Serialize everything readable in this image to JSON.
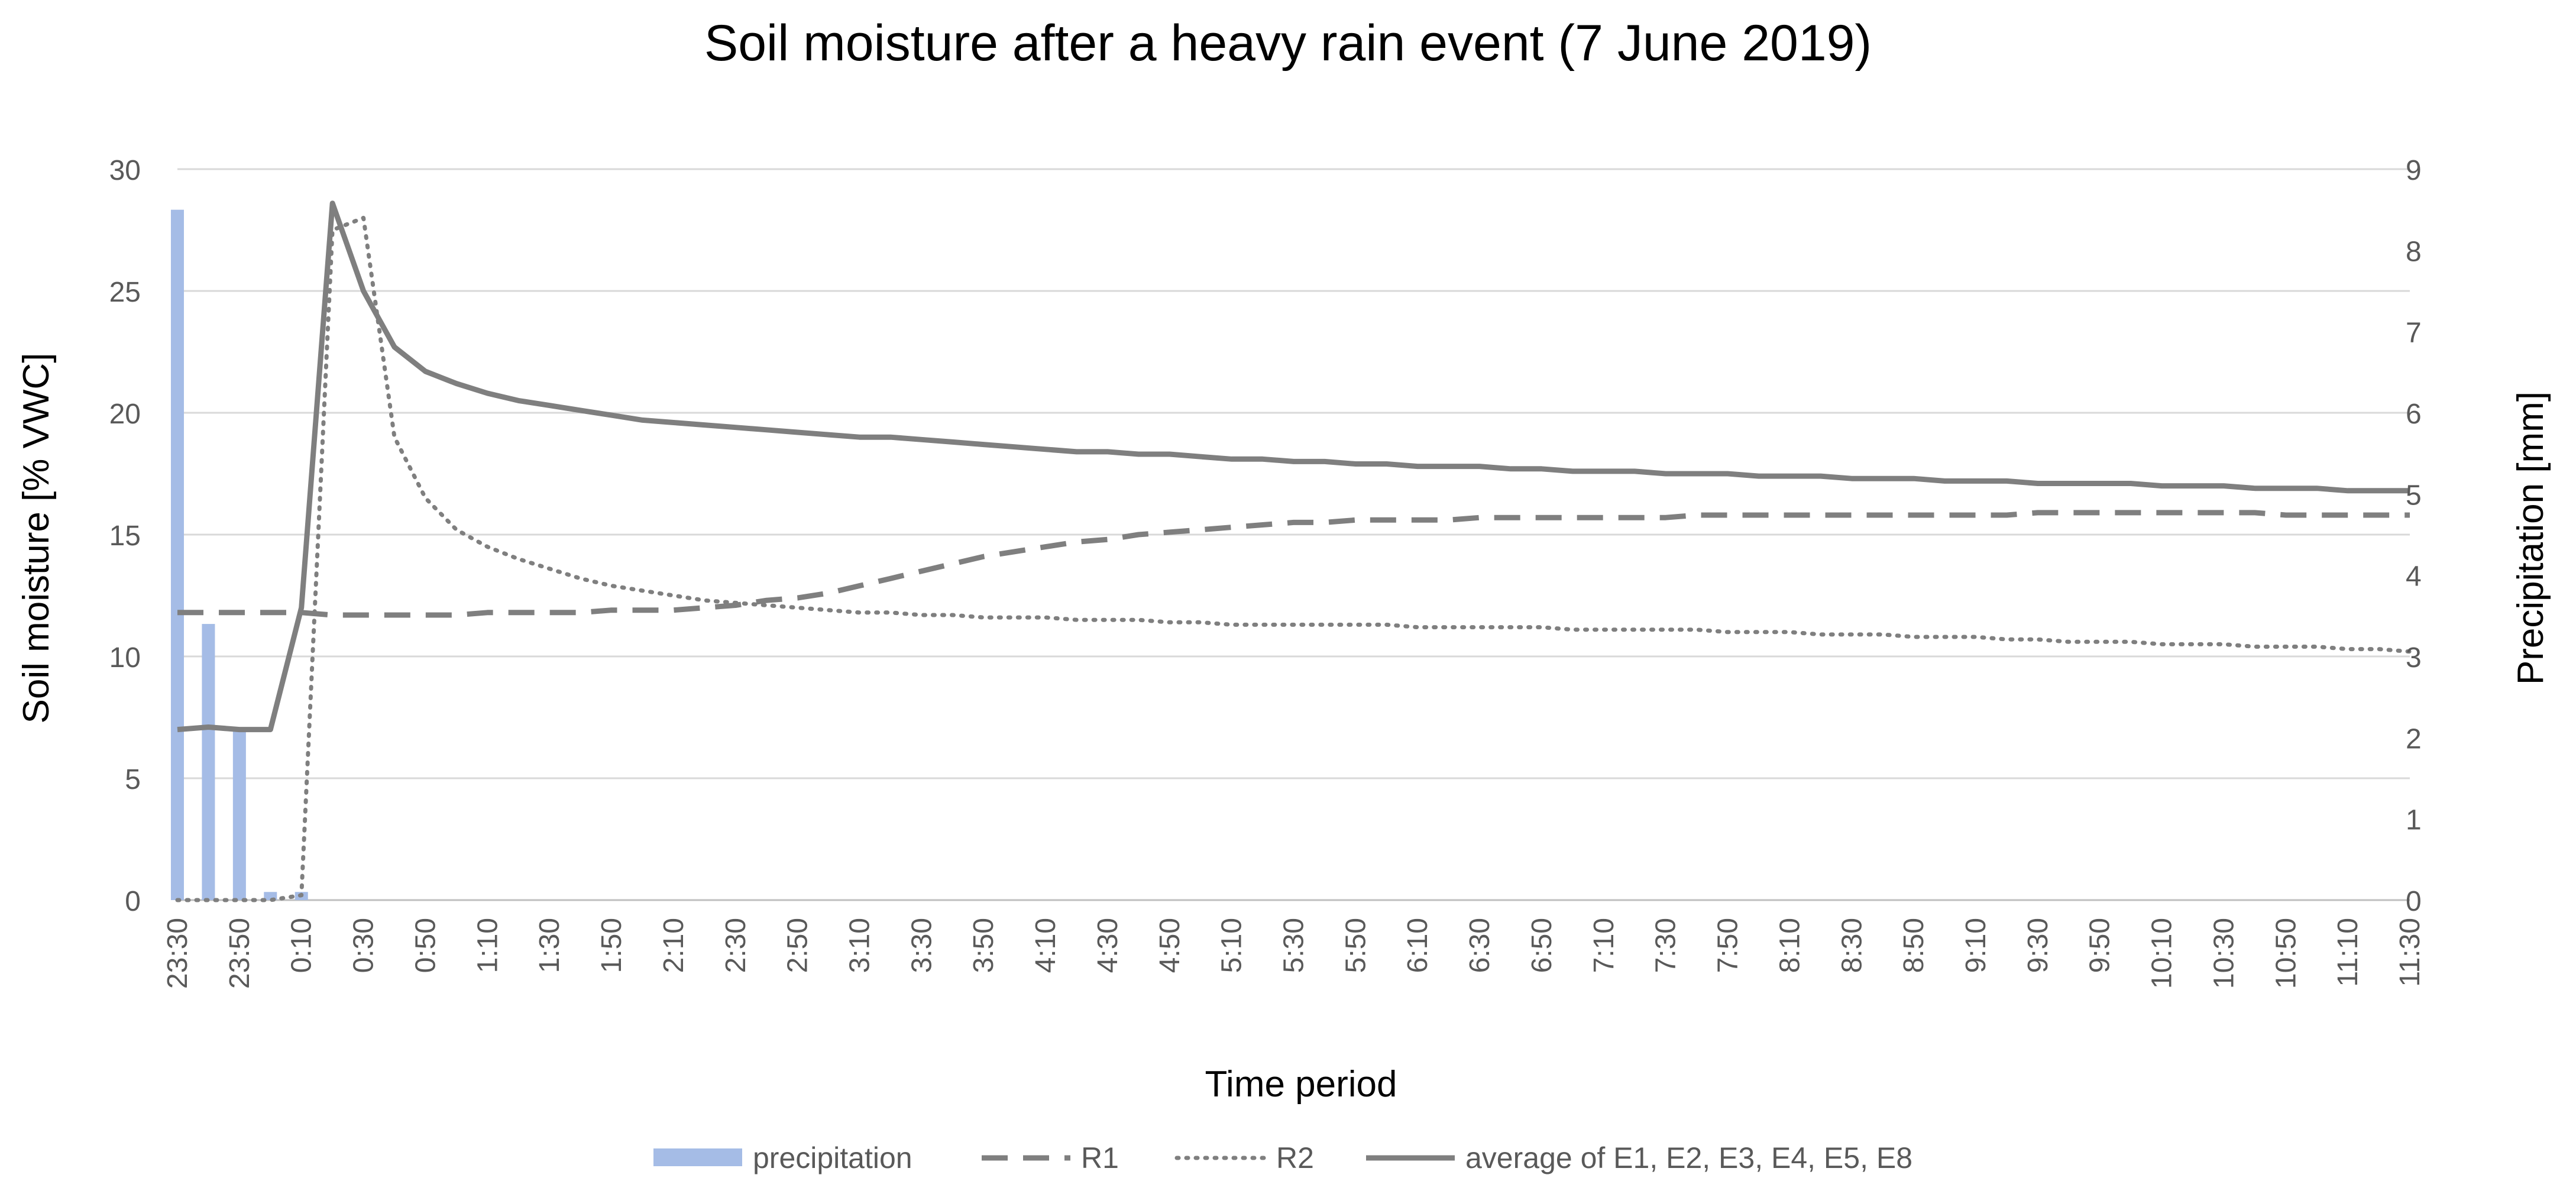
{
  "chart_data": {
    "type": "bar+line",
    "title": "Soil moisture after a heavy rain event (7 June 2019)",
    "xlabel": "Time period",
    "ylabel": "Soil moisture [% VWC]",
    "y2label": "Precipitation [mm]",
    "ylim": [
      0,
      30
    ],
    "yticks": [
      0,
      5,
      10,
      15,
      20,
      25,
      30
    ],
    "y2lim": [
      0,
      9
    ],
    "y2ticks": [
      0,
      1,
      2,
      3,
      4,
      5,
      6,
      7,
      8,
      9
    ],
    "grid": true,
    "legend_position": "bottom",
    "x": [
      "23:30",
      "23:40",
      "23:50",
      "0:00",
      "0:10",
      "0:20",
      "0:30",
      "0:40",
      "0:50",
      "1:00",
      "1:10",
      "1:20",
      "1:30",
      "1:40",
      "1:50",
      "2:00",
      "2:10",
      "2:20",
      "2:30",
      "2:40",
      "2:50",
      "3:00",
      "3:10",
      "3:20",
      "3:30",
      "3:40",
      "3:50",
      "4:00",
      "4:10",
      "4:20",
      "4:30",
      "4:40",
      "4:50",
      "5:00",
      "5:10",
      "5:20",
      "5:30",
      "5:40",
      "5:50",
      "6:00",
      "6:10",
      "6:20",
      "6:30",
      "6:40",
      "6:50",
      "7:00",
      "7:10",
      "7:20",
      "7:30",
      "7:40",
      "7:50",
      "8:00",
      "8:10",
      "8:20",
      "8:30",
      "8:40",
      "8:50",
      "9:00",
      "9:10",
      "9:20",
      "9:30",
      "9:40",
      "9:50",
      "10:00",
      "10:10",
      "10:20",
      "10:30",
      "10:40",
      "10:50",
      "11:00",
      "11:10",
      "11:20",
      "11:30"
    ],
    "tick_labels": [
      "23:30",
      "23:50",
      "0:10",
      "0:30",
      "0:50",
      "1:10",
      "1:30",
      "1:50",
      "2:10",
      "2:30",
      "2:50",
      "3:10",
      "3:30",
      "3:50",
      "4:10",
      "4:30",
      "4:50",
      "5:10",
      "5:30",
      "5:50",
      "6:10",
      "6:30",
      "6:50",
      "7:10",
      "7:30",
      "7:50",
      "8:10",
      "8:30",
      "8:50",
      "9:10",
      "9:30",
      "9:50",
      "10:10",
      "10:30",
      "10:50",
      "11:10",
      "11:30"
    ],
    "series": [
      {
        "name": "precipitation",
        "type": "bar",
        "axis": "right",
        "color": "#a5bce6",
        "values": [
          8.5,
          3.4,
          2.1,
          0.1,
          0.1,
          0,
          0,
          0,
          0,
          0,
          0,
          0,
          0,
          0,
          0,
          0,
          0,
          0,
          0,
          0,
          0,
          0,
          0,
          0,
          0,
          0,
          0,
          0,
          0,
          0,
          0,
          0,
          0,
          0,
          0,
          0,
          0,
          0,
          0,
          0,
          0,
          0,
          0,
          0,
          0,
          0,
          0,
          0,
          0,
          0,
          0,
          0,
          0,
          0,
          0,
          0,
          0,
          0,
          0,
          0,
          0,
          0,
          0,
          0,
          0,
          0,
          0,
          0,
          0,
          0,
          0,
          0,
          0
        ]
      },
      {
        "name": "R1",
        "type": "line",
        "style": "dashed",
        "axis": "left",
        "color": "#7f7f7f",
        "values": [
          11.8,
          11.8,
          11.8,
          11.8,
          11.8,
          11.7,
          11.7,
          11.7,
          11.7,
          11.7,
          11.8,
          11.8,
          11.8,
          11.8,
          11.9,
          11.9,
          11.9,
          12.0,
          12.1,
          12.3,
          12.4,
          12.6,
          12.9,
          13.2,
          13.5,
          13.8,
          14.1,
          14.3,
          14.5,
          14.7,
          14.8,
          15.0,
          15.1,
          15.2,
          15.3,
          15.4,
          15.5,
          15.5,
          15.6,
          15.6,
          15.6,
          15.6,
          15.7,
          15.7,
          15.7,
          15.7,
          15.7,
          15.7,
          15.7,
          15.8,
          15.8,
          15.8,
          15.8,
          15.8,
          15.8,
          15.8,
          15.8,
          15.8,
          15.8,
          15.8,
          15.9,
          15.9,
          15.9,
          15.9,
          15.9,
          15.9,
          15.9,
          15.9,
          15.8,
          15.8,
          15.8,
          15.8,
          15.8
        ]
      },
      {
        "name": "R2",
        "type": "line",
        "style": "dotted",
        "axis": "left",
        "color": "#7f7f7f",
        "values": [
          0,
          0,
          0,
          0,
          0.2,
          27.5,
          28.0,
          19.0,
          16.5,
          15.2,
          14.5,
          14.0,
          13.6,
          13.2,
          12.9,
          12.7,
          12.5,
          12.3,
          12.2,
          12.1,
          12.0,
          11.9,
          11.8,
          11.8,
          11.7,
          11.7,
          11.6,
          11.6,
          11.6,
          11.5,
          11.5,
          11.5,
          11.4,
          11.4,
          11.3,
          11.3,
          11.3,
          11.3,
          11.3,
          11.3,
          11.2,
          11.2,
          11.2,
          11.2,
          11.2,
          11.1,
          11.1,
          11.1,
          11.1,
          11.1,
          11.0,
          11.0,
          11.0,
          10.9,
          10.9,
          10.9,
          10.8,
          10.8,
          10.8,
          10.7,
          10.7,
          10.6,
          10.6,
          10.6,
          10.5,
          10.5,
          10.5,
          10.4,
          10.4,
          10.4,
          10.3,
          10.3,
          10.2
        ]
      },
      {
        "name": "average of E1, E2, E3, E4, E5, E8",
        "type": "line",
        "style": "solid",
        "axis": "left",
        "color": "#7f7f7f",
        "values": [
          7.0,
          7.1,
          7.0,
          7.0,
          12.0,
          28.6,
          25.0,
          22.7,
          21.7,
          21.2,
          20.8,
          20.5,
          20.3,
          20.1,
          19.9,
          19.7,
          19.6,
          19.5,
          19.4,
          19.3,
          19.2,
          19.1,
          19.0,
          19.0,
          18.9,
          18.8,
          18.7,
          18.6,
          18.5,
          18.4,
          18.4,
          18.3,
          18.3,
          18.2,
          18.1,
          18.1,
          18.0,
          18.0,
          17.9,
          17.9,
          17.8,
          17.8,
          17.8,
          17.7,
          17.7,
          17.6,
          17.6,
          17.6,
          17.5,
          17.5,
          17.5,
          17.4,
          17.4,
          17.4,
          17.3,
          17.3,
          17.3,
          17.2,
          17.2,
          17.2,
          17.1,
          17.1,
          17.1,
          17.1,
          17.0,
          17.0,
          17.0,
          16.9,
          16.9,
          16.9,
          16.8,
          16.8,
          16.8
        ]
      }
    ]
  }
}
